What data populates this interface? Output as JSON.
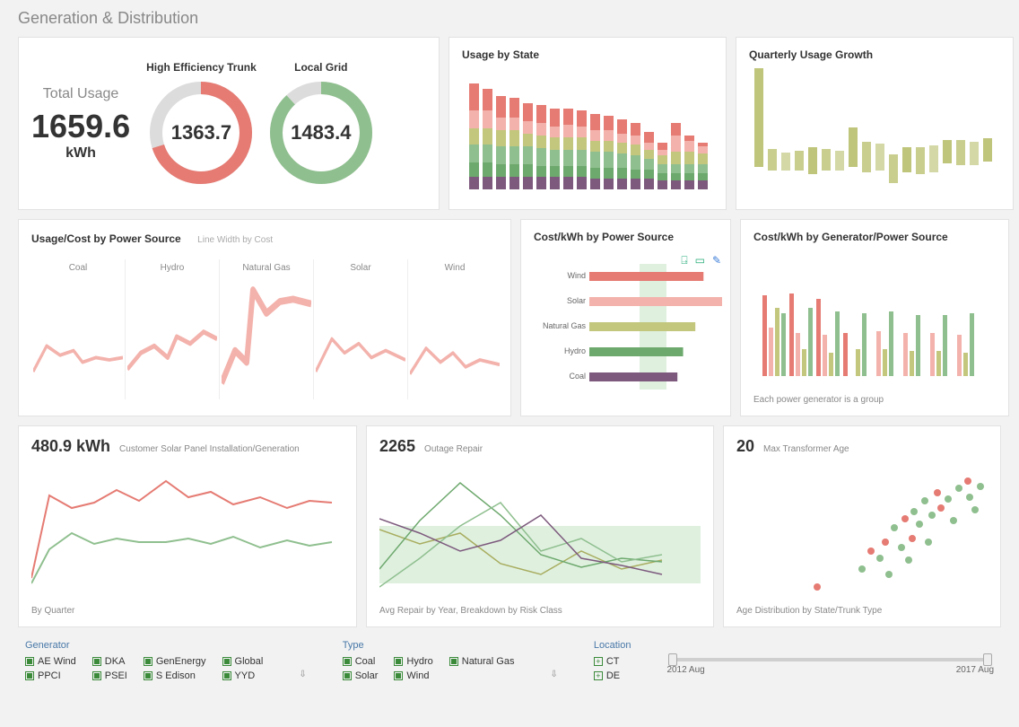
{
  "page_title": "Generation & Distribution",
  "colors": {
    "red": "#e57b73",
    "red_light": "#f3b2ac",
    "green": "#8fbf8f",
    "green_dark": "#6da86d",
    "olive": "#c3c77e",
    "olive_dark": "#a8ad5f",
    "purple": "#7d5a7d",
    "grey": "#dcdcdc",
    "band_green": "#dff0df"
  },
  "totals": {
    "total_usage_label": "Total Usage",
    "total_usage_value": "1659.6",
    "total_usage_unit": "kWh",
    "donut1_label": "High Efficiency Trunk",
    "donut1_value": "1363.7",
    "donut1_pct": 0.7,
    "donut1_color": "#e57b73",
    "donut2_label": "Local Grid",
    "donut2_value": "1483.4",
    "donut2_pct": 0.88,
    "donut2_color": "#8fbf8f"
  },
  "usage_by_state": {
    "title": "Usage by State",
    "columns": 18,
    "segments": [
      "purple",
      "green_dark",
      "green",
      "olive",
      "red_light",
      "red"
    ],
    "heights": [
      [
        14,
        16,
        20,
        18,
        20,
        30
      ],
      [
        14,
        16,
        20,
        18,
        20,
        24
      ],
      [
        14,
        14,
        20,
        18,
        14,
        24
      ],
      [
        14,
        14,
        20,
        18,
        14,
        22
      ],
      [
        14,
        14,
        20,
        14,
        14,
        20
      ],
      [
        14,
        12,
        20,
        14,
        14,
        20
      ],
      [
        14,
        12,
        18,
        14,
        12,
        20
      ],
      [
        14,
        12,
        18,
        14,
        14,
        18
      ],
      [
        14,
        12,
        18,
        14,
        12,
        18
      ],
      [
        12,
        12,
        18,
        12,
        12,
        18
      ],
      [
        12,
        12,
        18,
        12,
        12,
        16
      ],
      [
        12,
        12,
        16,
        12,
        10,
        16
      ],
      [
        12,
        10,
        16,
        12,
        10,
        14
      ],
      [
        12,
        10,
        12,
        10,
        8,
        12
      ],
      [
        10,
        8,
        10,
        10,
        6,
        8
      ],
      [
        10,
        8,
        10,
        14,
        18,
        14
      ],
      [
        10,
        8,
        10,
        14,
        12,
        6
      ],
      [
        10,
        8,
        10,
        12,
        8,
        4
      ]
    ]
  },
  "quarterly_growth": {
    "title": "Quarterly Usage Growth",
    "bars": [
      {
        "y": 0,
        "h": 110,
        "shade": 0
      },
      {
        "y": 90,
        "h": 24,
        "shade": 1
      },
      {
        "y": 94,
        "h": 20,
        "shade": 2
      },
      {
        "y": 92,
        "h": 22,
        "shade": 1
      },
      {
        "y": 88,
        "h": 30,
        "shade": 0
      },
      {
        "y": 90,
        "h": 24,
        "shade": 1
      },
      {
        "y": 92,
        "h": 22,
        "shade": 2
      },
      {
        "y": 66,
        "h": 44,
        "shade": 0
      },
      {
        "y": 82,
        "h": 34,
        "shade": 1
      },
      {
        "y": 84,
        "h": 30,
        "shade": 2
      },
      {
        "y": 96,
        "h": 32,
        "shade": 1
      },
      {
        "y": 88,
        "h": 28,
        "shade": 0
      },
      {
        "y": 88,
        "h": 30,
        "shade": 1
      },
      {
        "y": 86,
        "h": 30,
        "shade": 2
      },
      {
        "y": 80,
        "h": 26,
        "shade": 0
      },
      {
        "y": 80,
        "h": 28,
        "shade": 1
      },
      {
        "y": 82,
        "h": 26,
        "shade": 2
      },
      {
        "y": 78,
        "h": 26,
        "shade": 0
      }
    ],
    "shades": [
      "#bfc57a",
      "#c9ce8f",
      "#d4d8a6"
    ]
  },
  "usage_cost": {
    "title": "Usage/Cost by Power Source",
    "subtitle": "Line Width by Cost",
    "panels": [
      {
        "label": "Coal",
        "w": 3,
        "pts": [
          [
            0,
            80
          ],
          [
            15,
            58
          ],
          [
            30,
            66
          ],
          [
            45,
            62
          ],
          [
            55,
            72
          ],
          [
            70,
            68
          ],
          [
            85,
            70
          ],
          [
            100,
            68
          ]
        ]
      },
      {
        "label": "Hydro",
        "w": 4,
        "pts": [
          [
            0,
            78
          ],
          [
            15,
            64
          ],
          [
            30,
            58
          ],
          [
            45,
            68
          ],
          [
            55,
            50
          ],
          [
            70,
            56
          ],
          [
            85,
            46
          ],
          [
            100,
            52
          ]
        ]
      },
      {
        "label": "Natural Gas",
        "w": 6,
        "pts": [
          [
            0,
            90
          ],
          [
            15,
            62
          ],
          [
            28,
            72
          ],
          [
            35,
            10
          ],
          [
            50,
            30
          ],
          [
            65,
            20
          ],
          [
            80,
            18
          ],
          [
            100,
            22
          ]
        ]
      },
      {
        "label": "Solar",
        "w": 3,
        "pts": [
          [
            0,
            80
          ],
          [
            18,
            52
          ],
          [
            32,
            64
          ],
          [
            48,
            56
          ],
          [
            62,
            68
          ],
          [
            78,
            62
          ],
          [
            100,
            70
          ]
        ]
      },
      {
        "label": "Wind",
        "w": 3,
        "pts": [
          [
            0,
            82
          ],
          [
            18,
            60
          ],
          [
            34,
            72
          ],
          [
            48,
            64
          ],
          [
            62,
            76
          ],
          [
            78,
            70
          ],
          [
            100,
            74
          ]
        ]
      }
    ]
  },
  "cost_kwh": {
    "title": "Cost/kWh by Power Source",
    "band": {
      "x": 118,
      "w": 30
    },
    "rows": [
      {
        "label": "Wind",
        "len": 140,
        "color": "red"
      },
      {
        "label": "Solar",
        "len": 170,
        "color": "red_light"
      },
      {
        "label": "Natural Gas",
        "len": 130,
        "color": "olive"
      },
      {
        "label": "Hydro",
        "len": 115,
        "color": "green_dark"
      },
      {
        "label": "Coal",
        "len": 108,
        "color": "purple"
      }
    ]
  },
  "cost_kwh_gen": {
    "title": "Cost/kWh by Generator/Power Source",
    "subtitle": "Each power generator is a group",
    "groups": 8,
    "bars_per_group": 4,
    "palette": [
      "red",
      "red_light",
      "olive",
      "green"
    ],
    "heights": [
      [
        90,
        54,
        76,
        70
      ],
      [
        92,
        48,
        30,
        76
      ],
      [
        86,
        46,
        26,
        72
      ],
      [
        48,
        0,
        30,
        70
      ],
      [
        0,
        50,
        30,
        72
      ],
      [
        0,
        48,
        28,
        68
      ],
      [
        0,
        48,
        28,
        68
      ],
      [
        0,
        46,
        26,
        70
      ]
    ]
  },
  "solar_panel": {
    "value": "480.9 kWh",
    "title": "Customer Solar Panel Installation/Generation",
    "footer": "By Quarter",
    "series": [
      {
        "color": "red",
        "w": 2,
        "pts": [
          [
            0,
            130
          ],
          [
            20,
            38
          ],
          [
            45,
            52
          ],
          [
            70,
            46
          ],
          [
            95,
            32
          ],
          [
            120,
            44
          ],
          [
            150,
            22
          ],
          [
            175,
            40
          ],
          [
            200,
            34
          ],
          [
            225,
            48
          ],
          [
            255,
            40
          ],
          [
            285,
            52
          ],
          [
            310,
            44
          ],
          [
            335,
            46
          ]
        ]
      },
      {
        "color": "green",
        "w": 2,
        "pts": [
          [
            0,
            136
          ],
          [
            20,
            98
          ],
          [
            45,
            80
          ],
          [
            70,
            92
          ],
          [
            95,
            86
          ],
          [
            120,
            90
          ],
          [
            150,
            90
          ],
          [
            175,
            86
          ],
          [
            200,
            92
          ],
          [
            225,
            84
          ],
          [
            255,
            96
          ],
          [
            285,
            88
          ],
          [
            310,
            94
          ],
          [
            335,
            90
          ]
        ]
      }
    ]
  },
  "outage": {
    "value": "2265",
    "title": "Outage Repair",
    "footer": "Avg Repair by Year, Breakdown by Risk Class",
    "band": {
      "y": 72,
      "h": 64
    },
    "series": [
      {
        "color": "olive_dark",
        "pts": [
          [
            0,
            76
          ],
          [
            45,
            92
          ],
          [
            90,
            80
          ],
          [
            135,
            114
          ],
          [
            180,
            126
          ],
          [
            225,
            100
          ],
          [
            270,
            120
          ],
          [
            315,
            110
          ]
        ]
      },
      {
        "color": "green_dark",
        "pts": [
          [
            0,
            120
          ],
          [
            45,
            66
          ],
          [
            90,
            24
          ],
          [
            135,
            60
          ],
          [
            180,
            104
          ],
          [
            225,
            118
          ],
          [
            270,
            108
          ],
          [
            315,
            112
          ]
        ]
      },
      {
        "color": "green",
        "pts": [
          [
            0,
            140
          ],
          [
            45,
            108
          ],
          [
            90,
            72
          ],
          [
            135,
            46
          ],
          [
            180,
            100
          ],
          [
            225,
            86
          ],
          [
            270,
            112
          ],
          [
            315,
            104
          ]
        ]
      },
      {
        "color": "purple",
        "pts": [
          [
            0,
            64
          ],
          [
            45,
            80
          ],
          [
            90,
            100
          ],
          [
            135,
            88
          ],
          [
            180,
            60
          ],
          [
            225,
            108
          ],
          [
            270,
            116
          ],
          [
            315,
            126
          ]
        ]
      }
    ]
  },
  "transformer": {
    "value": "20",
    "title": "Max Transformer Age",
    "footer": "Age Distribution by State/Trunk Type",
    "points": [
      {
        "x": 90,
        "y": 140,
        "c": "red"
      },
      {
        "x": 140,
        "y": 120,
        "c": "green"
      },
      {
        "x": 150,
        "y": 100,
        "c": "red"
      },
      {
        "x": 160,
        "y": 108,
        "c": "green"
      },
      {
        "x": 166,
        "y": 90,
        "c": "red"
      },
      {
        "x": 170,
        "y": 126,
        "c": "green"
      },
      {
        "x": 176,
        "y": 74,
        "c": "green"
      },
      {
        "x": 184,
        "y": 96,
        "c": "green"
      },
      {
        "x": 188,
        "y": 64,
        "c": "red"
      },
      {
        "x": 192,
        "y": 110,
        "c": "green"
      },
      {
        "x": 196,
        "y": 86,
        "c": "red"
      },
      {
        "x": 198,
        "y": 56,
        "c": "green"
      },
      {
        "x": 204,
        "y": 70,
        "c": "green"
      },
      {
        "x": 210,
        "y": 44,
        "c": "green"
      },
      {
        "x": 214,
        "y": 90,
        "c": "green"
      },
      {
        "x": 218,
        "y": 60,
        "c": "green"
      },
      {
        "x": 224,
        "y": 35,
        "c": "red"
      },
      {
        "x": 228,
        "y": 52,
        "c": "red"
      },
      {
        "x": 236,
        "y": 42,
        "c": "green"
      },
      {
        "x": 242,
        "y": 66,
        "c": "green"
      },
      {
        "x": 248,
        "y": 30,
        "c": "green"
      },
      {
        "x": 258,
        "y": 22,
        "c": "red"
      },
      {
        "x": 260,
        "y": 40,
        "c": "green"
      },
      {
        "x": 266,
        "y": 54,
        "c": "green"
      },
      {
        "x": 272,
        "y": 28,
        "c": "green"
      }
    ]
  },
  "filters": {
    "generator": {
      "title": "Generator",
      "items": [
        "AE Wind",
        "PPCI",
        "DKA",
        "PSEI",
        "GenEnergy",
        "S Edison",
        "Global",
        "YYD"
      ]
    },
    "type": {
      "title": "Type",
      "items": [
        "Coal",
        "Solar",
        "Hydro",
        "Wind",
        "Natural Gas"
      ]
    },
    "location": {
      "title": "Location",
      "items": [
        "CT",
        "DE"
      ]
    },
    "slider": {
      "min": "2012 Aug",
      "max": "2017 Aug"
    }
  }
}
